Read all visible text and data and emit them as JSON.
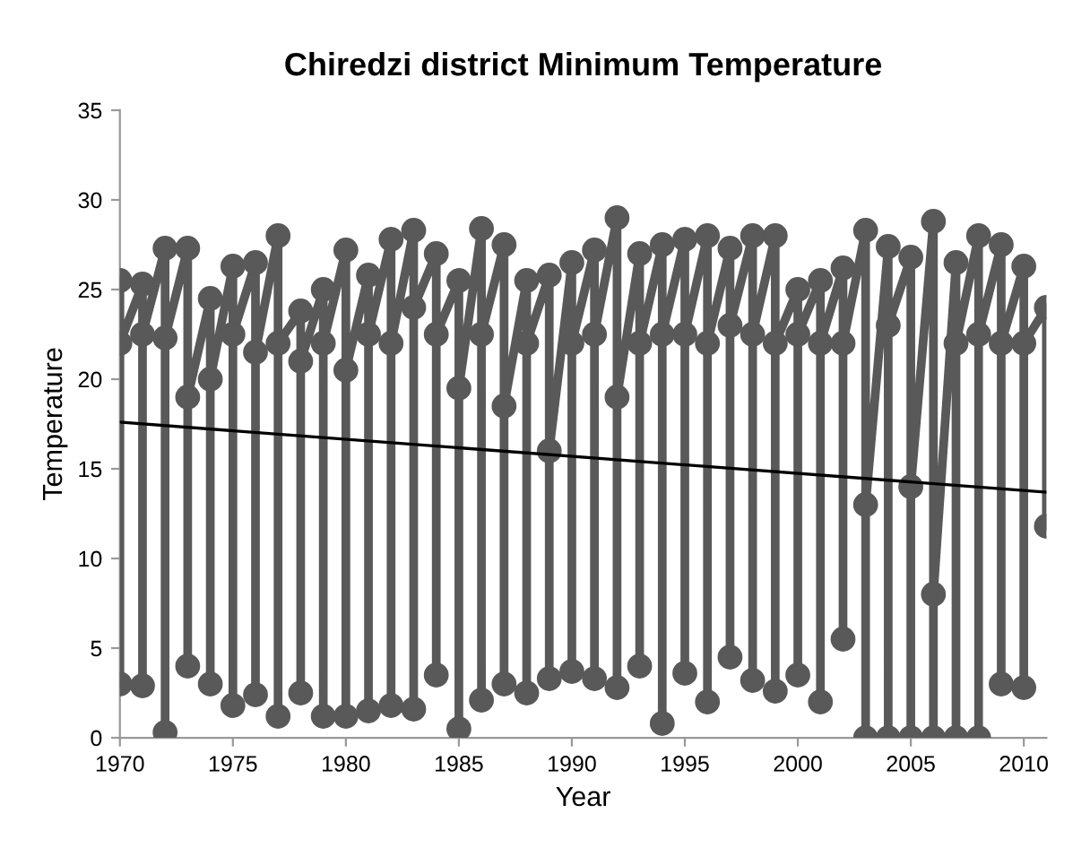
{
  "chart_data": {
    "type": "line",
    "title": "Chiredzi district Minimum Temperature",
    "xlabel": "Year",
    "ylabel": "Temperature",
    "xlim": [
      1970,
      2011
    ],
    "xticks": [
      1970,
      1975,
      1980,
      1985,
      1990,
      1995,
      2000,
      2005,
      2010
    ],
    "ylim": [
      0,
      35
    ],
    "yticks": [
      0,
      5,
      10,
      15,
      20,
      25,
      30,
      35
    ],
    "grid": false,
    "series": [
      {
        "color": "#595959",
        "marker": "circle",
        "line_style": "solid",
        "x": [
          1970,
          1970,
          1970,
          1971,
          1971,
          1971,
          1972,
          1972,
          1972,
          1973,
          1973,
          1973,
          1974,
          1974,
          1974,
          1975,
          1975,
          1975,
          1976,
          1976,
          1976,
          1977,
          1977,
          1977,
          1978,
          1978,
          1978,
          1979,
          1979,
          1979,
          1980,
          1980,
          1980,
          1981,
          1981,
          1981,
          1982,
          1982,
          1982,
          1983,
          1983,
          1983,
          1984,
          1984,
          1984,
          1985,
          1985,
          1985,
          1986,
          1986,
          1986,
          1987,
          1987,
          1987,
          1988,
          1988,
          1988,
          1989,
          1989,
          1989,
          1990,
          1990,
          1990,
          1991,
          1991,
          1991,
          1992,
          1992,
          1992,
          1993,
          1993,
          1993,
          1994,
          1994,
          1994,
          1995,
          1995,
          1995,
          1996,
          1996,
          1996,
          1997,
          1997,
          1997,
          1998,
          1998,
          1998,
          1999,
          1999,
          1999,
          2000,
          2000,
          2000,
          2001,
          2001,
          2001,
          2002,
          2002,
          2002,
          2003,
          2003,
          2003,
          2004,
          2004,
          2004,
          2005,
          2005,
          2005,
          2006,
          2006,
          2006,
          2007,
          2007,
          2007,
          2008,
          2008,
          2008,
          2009,
          2009,
          2009,
          2010,
          2010,
          2010,
          2011,
          2011
        ],
        "values": [
          25.5,
          3,
          22,
          25.3,
          2.9,
          22.5,
          27.3,
          0.3,
          22.3,
          27.3,
          4,
          19,
          24.5,
          3,
          20,
          26.3,
          1.8,
          22.5,
          26.5,
          2.4,
          21.5,
          28,
          1.2,
          22,
          23.8,
          2.5,
          21,
          25,
          1.2,
          22,
          27.2,
          1.2,
          20.5,
          25.8,
          1.5,
          22.5,
          27.8,
          1.8,
          22,
          28.3,
          1.6,
          24,
          27,
          3.5,
          22.5,
          25.5,
          0.5,
          19.5,
          28.4,
          2.1,
          22.5,
          27.5,
          3,
          18.5,
          25.5,
          2.5,
          22,
          25.8,
          3.3,
          16,
          26.5,
          3.7,
          22,
          27.2,
          3.3,
          22.5,
          29,
          2.8,
          19,
          27,
          4,
          22,
          27.5,
          0.8,
          22.5,
          27.8,
          3.6,
          22.5,
          28,
          2,
          22,
          27.3,
          4.5,
          23,
          28,
          3.2,
          22.5,
          28,
          2.6,
          22,
          25,
          3.5,
          22.5,
          25.5,
          2,
          22,
          26.2,
          5.5,
          22,
          28.3,
          0,
          13,
          27.4,
          0,
          23,
          26.8,
          0,
          14,
          28.8,
          0,
          8,
          26.5,
          0,
          22,
          28,
          0,
          22.5,
          27.5,
          3,
          22,
          26.3,
          2.8,
          22,
          24,
          11.8
        ]
      },
      {
        "type": "line",
        "color": "#000000",
        "marker": "none",
        "line_style": "solid",
        "x": [
          1970,
          2011
        ],
        "values": [
          17.6,
          13.7
        ]
      }
    ]
  }
}
